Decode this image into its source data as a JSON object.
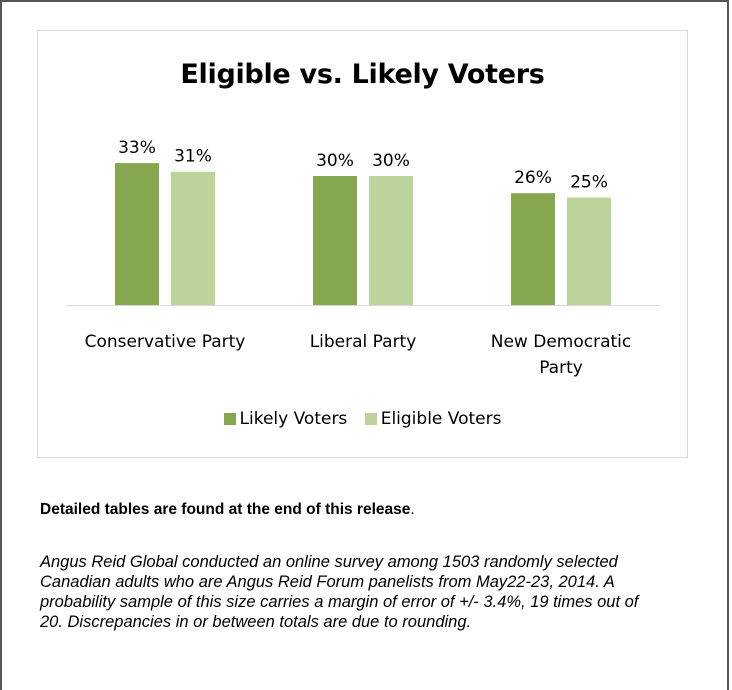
{
  "note": {
    "bold": "Detailed tables are found at the end of this release",
    "bold_suffix": ".",
    "body": "Angus Reid Global conducted an online survey among 1503 randomly selected Canadian adults who are Angus Reid Forum panelists from May22-23, 2014. A probability sample of this size carries a margin of error of +/- 3.4%, 19 times out of 20. Discrepancies in or between totals are due to rounding."
  },
  "chart_data": {
    "type": "bar",
    "title": "Eligible vs. Likely Voters",
    "categories": [
      [
        "Conservative Party"
      ],
      [
        "Liberal Party"
      ],
      [
        "New Democratic",
        "Party"
      ]
    ],
    "series": [
      {
        "name": "Likely Voters",
        "values": [
          33,
          30,
          26
        ],
        "labels": [
          "33%",
          "30%",
          "26%"
        ],
        "color": "#86a64f"
      },
      {
        "name": "Eligible Voters",
        "values": [
          31,
          30,
          25
        ],
        "labels": [
          "31%",
          "30%",
          "25%"
        ],
        "color": "#bcd49b"
      }
    ],
    "ylim": [
      0,
      35
    ],
    "grid": false,
    "legend_position": "bottom",
    "axis_color": "#d9d9d9"
  }
}
